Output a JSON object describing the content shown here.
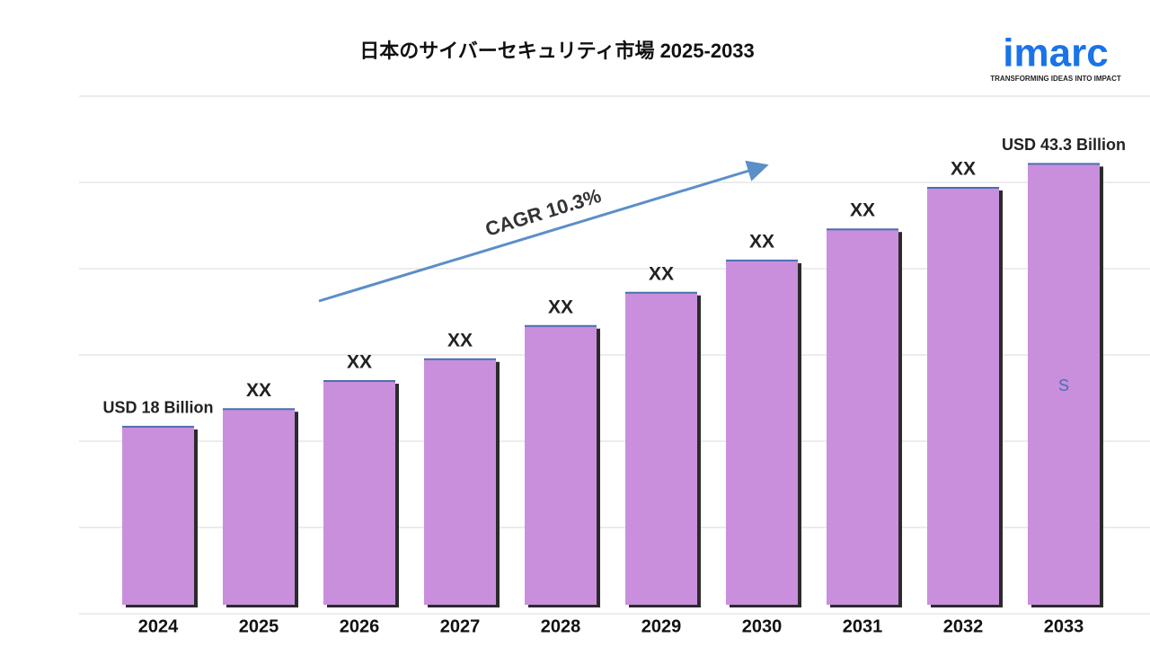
{
  "chart_data": {
    "type": "bar",
    "title": "日本のサイバーセキュリティ市場 2025-2033",
    "categories": [
      "2024",
      "2025",
      "2026",
      "2027",
      "2028",
      "2029",
      "2030",
      "2031",
      "2032",
      "2033"
    ],
    "values": [
      18,
      19.7,
      22.4,
      24.5,
      27.7,
      30.9,
      34.0,
      37.0,
      41.0,
      43.3
    ],
    "value_labels": [
      "USD  18 Billion",
      "XX",
      "XX",
      "XX",
      "XX",
      "XX",
      "XX",
      "XX",
      "XX",
      "USD  43.3 Billion"
    ],
    "color": "#c98fdc",
    "ylim": [
      0,
      48
    ],
    "annotation": "CAGR  10.3%",
    "bar_text": "S"
  },
  "brand": {
    "name": "imarc",
    "tagline": "TRANSFORMING IDEAS INTO IMPACT"
  }
}
